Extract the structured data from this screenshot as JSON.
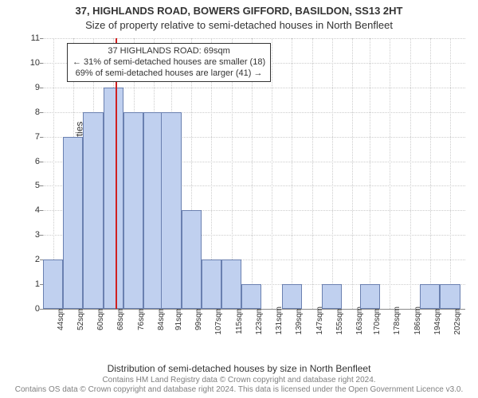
{
  "title1": "37, HIGHLANDS ROAD, BOWERS GIFFORD, BASILDON, SS13 2HT",
  "title2": "Size of property relative to semi-detached houses in North Benfleet",
  "ylabel": "Number of semi-detached properties",
  "xlabel": "Distribution of semi-detached houses by size in North Benfleet",
  "copyright1": "Contains HM Land Registry data © Crown copyright and database right 2024.",
  "copyright2": "Contains OS data © Crown copyright and database right 2024.",
  "copyright3": "This data is licensed under the Open Government Licence v3.0.",
  "chart": {
    "type": "histogram",
    "background_color": "#ffffff",
    "grid_color": "#cccccc",
    "bar_fill": "#c0d0ef",
    "bar_stroke": "#6a80b0",
    "marker_color": "#d02020",
    "text_color": "#333333",
    "font_family": "Arial",
    "title_fontsize": 13,
    "label_fontsize": 12,
    "tick_fontsize": 11,
    "xtick_fontsize": 10,
    "ylim": [
      0,
      11
    ],
    "ytick_step": 1,
    "x_start": 40,
    "x_end": 208,
    "bar_width_units": 8,
    "xticks": [
      44,
      52,
      60,
      68,
      76,
      84,
      91,
      99,
      107,
      115,
      123,
      131,
      139,
      147,
      155,
      163,
      170,
      178,
      186,
      194,
      202
    ],
    "values": [
      2,
      7,
      8,
      9,
      8,
      8,
      8,
      4,
      2,
      2,
      1,
      0,
      1,
      0,
      1,
      0,
      1,
      0,
      0,
      1,
      1
    ],
    "marker_x": 69,
    "annotation": {
      "line1": "37 HIGHLANDS ROAD: 69sqm",
      "line2": "← 31% of semi-detached houses are smaller (18)",
      "line3": "69% of semi-detached houses are larger (41) →"
    }
  }
}
